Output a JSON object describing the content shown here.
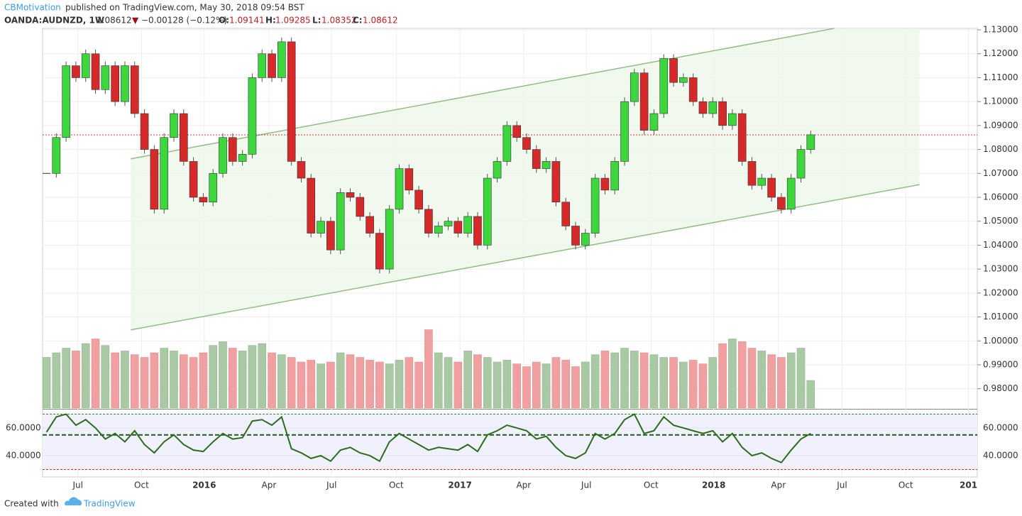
{
  "header": {
    "author": "CBMotivation",
    "published": "published on TradingView.com, May 30, 2018 09:54 BST",
    "symbol": "OANDA:AUDNZD, 1W",
    "last": "1.08612",
    "arrow": "▼",
    "change": "−0.00128 (−0.12%)",
    "o_label": "O:",
    "o": "1.09141",
    "h_label": "H:",
    "h": "1.09285",
    "l_label": "L:",
    "l": "1.08352",
    "c_label": "C:",
    "c": "1.08612"
  },
  "footer": {
    "created": "Created with",
    "brand": "TradingView"
  },
  "chart_data": {
    "type": "candlestick",
    "closes": [
      1.07,
      1.085,
      1.115,
      1.11,
      1.12,
      1.105,
      1.115,
      1.1,
      1.115,
      1.095,
      1.08,
      1.055,
      1.085,
      1.095,
      1.075,
      1.06,
      1.058,
      1.07,
      1.085,
      1.075,
      1.078,
      1.11,
      1.12,
      1.11,
      1.125,
      1.075,
      1.068,
      1.045,
      1.05,
      1.038,
      1.062,
      1.06,
      1.052,
      1.045,
      1.03,
      1.055,
      1.072,
      1.063,
      1.055,
      1.045,
      1.048,
      1.05,
      1.045,
      1.052,
      1.04,
      1.068,
      1.075,
      1.09,
      1.085,
      1.08,
      1.072,
      1.075,
      1.058,
      1.048,
      1.04,
      1.045,
      1.068,
      1.063,
      1.075,
      1.1,
      1.112,
      1.088,
      1.095,
      1.118,
      1.108,
      1.11,
      1.1,
      1.095,
      1.1,
      1.09,
      1.095,
      1.075,
      1.065,
      1.068,
      1.06,
      1.055,
      1.068,
      1.08,
      1.08612
    ],
    "up_color": "#3dd63d",
    "down_color": "#d62a2a",
    "xlim": [
      -0.4,
      95.0
    ],
    "xticks": [
      {
        "value": 3.2,
        "label": "Jul"
      },
      {
        "value": 9.7,
        "label": "Oct"
      },
      {
        "value": 16.1,
        "label": "2016"
      },
      {
        "value": 22.7,
        "label": "Apr"
      },
      {
        "value": 29.1,
        "label": "Jul"
      },
      {
        "value": 35.7,
        "label": "Oct"
      },
      {
        "value": 42.2,
        "label": "2017"
      },
      {
        "value": 48.7,
        "label": "Apr"
      },
      {
        "value": 55.1,
        "label": "Jul"
      },
      {
        "value": 61.7,
        "label": "Oct"
      },
      {
        "value": 68.1,
        "label": "2018"
      },
      {
        "value": 74.7,
        "label": "Apr"
      },
      {
        "value": 81.2,
        "label": "Jul"
      },
      {
        "value": 87.7,
        "label": "Oct"
      },
      {
        "value": 94.1,
        "label": "201"
      }
    ],
    "ylim": [
      0.9719,
      1.1306
    ],
    "yticks": [
      {
        "value": 0.98,
        "label": "0.98000"
      },
      {
        "value": 0.99,
        "label": "0.99000"
      },
      {
        "value": 1.0,
        "label": "1.00000"
      },
      {
        "value": 1.01,
        "label": "1.01000"
      },
      {
        "value": 1.02,
        "label": "1.02000"
      },
      {
        "value": 1.03,
        "label": "1.03000"
      },
      {
        "value": 1.04,
        "label": "1.04000"
      },
      {
        "value": 1.05,
        "label": "1.05000"
      },
      {
        "value": 1.06,
        "label": "1.06000"
      },
      {
        "value": 1.07,
        "label": "1.07000"
      },
      {
        "value": 1.08,
        "label": "1.08000"
      },
      {
        "value": 1.09,
        "label": "1.09000"
      },
      {
        "value": 1.1,
        "label": "1.10000"
      },
      {
        "value": 1.11,
        "label": "1.11000"
      },
      {
        "value": 1.12,
        "label": "1.12000"
      },
      {
        "value": 1.13,
        "label": "1.13000"
      }
    ],
    "grid": true,
    "price_line": 1.08612,
    "price_line_color": "#e03030",
    "channel": {
      "color": "#8fbf7f",
      "upper": [
        [
          8.6,
          1.0761
        ],
        [
          80.4,
          1.1306
        ]
      ],
      "lower": [
        [
          8.6,
          1.0046
        ],
        [
          89.1,
          1.0653
        ]
      ]
    },
    "volume": {
      "values": [
        55,
        60,
        65,
        62,
        70,
        75,
        68,
        60,
        62,
        58,
        55,
        60,
        65,
        62,
        58,
        55,
        60,
        68,
        72,
        65,
        62,
        68,
        70,
        60,
        58,
        55,
        50,
        52,
        48,
        50,
        60,
        58,
        55,
        52,
        50,
        48,
        52,
        55,
        50,
        85,
        60,
        55,
        50,
        62,
        58,
        55,
        50,
        52,
        48,
        45,
        50,
        48,
        55,
        52,
        45,
        50,
        58,
        62,
        60,
        65,
        62,
        60,
        58,
        55,
        55,
        50,
        52,
        48,
        55,
        70,
        75,
        72,
        65,
        62,
        58,
        55,
        60,
        65,
        30
      ],
      "ylim": [
        0,
        100
      ],
      "up_color": "#a9c9a4",
      "down_color": "#f0a0a0"
    },
    "rsi": {
      "values": [
        57,
        68,
        70,
        62,
        66,
        60,
        52,
        56,
        50,
        58,
        48,
        42,
        50,
        55,
        48,
        44,
        43,
        50,
        56,
        52,
        53,
        65,
        66,
        62,
        68,
        45,
        42,
        38,
        40,
        36,
        44,
        46,
        42,
        40,
        36,
        50,
        56,
        52,
        48,
        44,
        46,
        45,
        44,
        48,
        43,
        55,
        58,
        62,
        60,
        58,
        52,
        54,
        46,
        40,
        38,
        42,
        56,
        52,
        56,
        66,
        70,
        56,
        58,
        68,
        62,
        60,
        58,
        56,
        58,
        50,
        56,
        46,
        40,
        42,
        38,
        35,
        44,
        52,
        56
      ],
      "color": "#2e6b1e",
      "ylim": [
        24.6,
        72.8
      ],
      "yticks": [
        {
          "value": 40,
          "label": "40.0000"
        },
        {
          "value": 60,
          "label": "60.0000"
        }
      ],
      "levels": [
        70,
        55,
        30
      ],
      "level_colors": [
        "#2e8b2e",
        "#1e5a1e",
        "#d62a2a"
      ]
    }
  }
}
